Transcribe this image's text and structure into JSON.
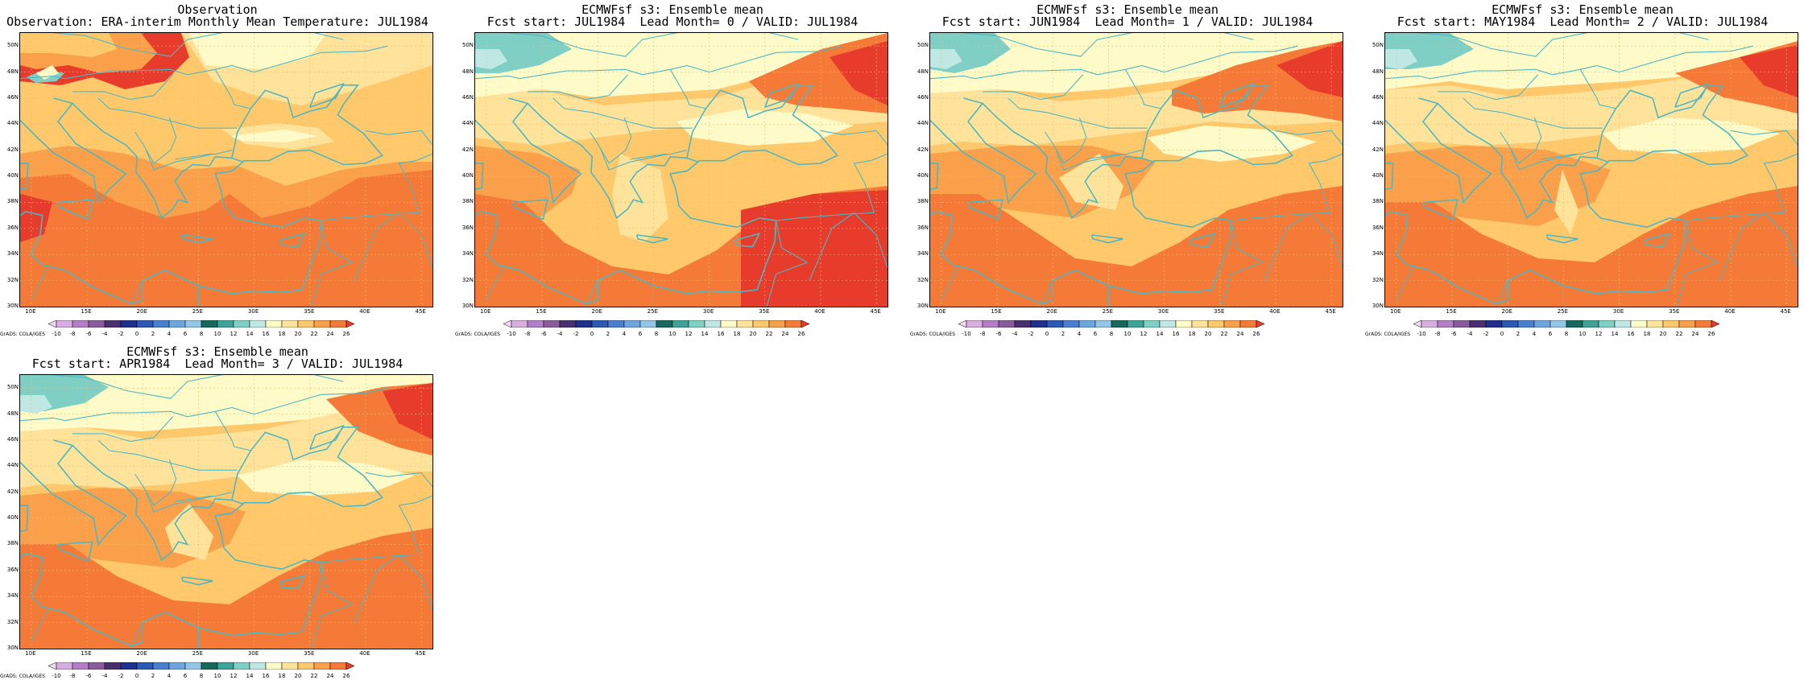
{
  "panels": [
    {
      "title_line1": "Observation",
      "title_line2": "Observation: ERA-interim Monthly Mean Temperature: JUL1984",
      "scenario": "obs"
    },
    {
      "title_line1": "ECMWFsf s3: Ensemble mean",
      "title_line2": "Fcst start: JUL1984  Lead Month= 0 / VALID: JUL1984",
      "scenario": "lead0"
    },
    {
      "title_line1": "ECMWFsf s3: Ensemble mean",
      "title_line2": "Fcst start: JUN1984  Lead Month= 1 / VALID: JUL1984",
      "scenario": "lead1"
    },
    {
      "title_line1": "ECMWFsf s3: Ensemble mean",
      "title_line2": "Fcst start: MAY1984  Lead Month= 2 / VALID: JUL1984",
      "scenario": "lead2"
    },
    {
      "title_line1": "ECMWFsf s3: Ensemble mean",
      "title_line2": "Fcst start: APR1984  Lead Month= 3 / VALID: JUL1984",
      "scenario": "lead3"
    }
  ],
  "lat_labels": [
    "50N",
    "48N",
    "46N",
    "44N",
    "42N",
    "40N",
    "38N",
    "36N",
    "34N",
    "32N",
    "30N"
  ],
  "lon_labels": [
    "10E",
    "15E",
    "20E",
    "25E",
    "30E",
    "35E",
    "40E",
    "45E"
  ],
  "colorbar": {
    "labels": [
      "-10",
      "-8",
      "-6",
      "-4",
      "-2",
      "0",
      "2",
      "4",
      "6",
      "8",
      "10",
      "12",
      "14",
      "16",
      "18",
      "20",
      "22",
      "24",
      "26"
    ],
    "colors": [
      "#f2d8f2",
      "#d8aee0",
      "#b47ec6",
      "#8a5c9e",
      "#4a2f6e",
      "#1f2f8c",
      "#2b59b3",
      "#4a7fd0",
      "#6ca6dc",
      "#93c6e6",
      "#17685e",
      "#3fa397",
      "#7fcfc5",
      "#bfe7e3",
      "#fffbc8",
      "#ffe39b",
      "#ffc86b",
      "#fba04a",
      "#f57a38",
      "#e73b2b"
    ],
    "credit": "GrADS: COLA/IGES"
  },
  "legend_colors": {
    "land_coast": "#4cb8c4",
    "grid": "#e8c070"
  }
}
